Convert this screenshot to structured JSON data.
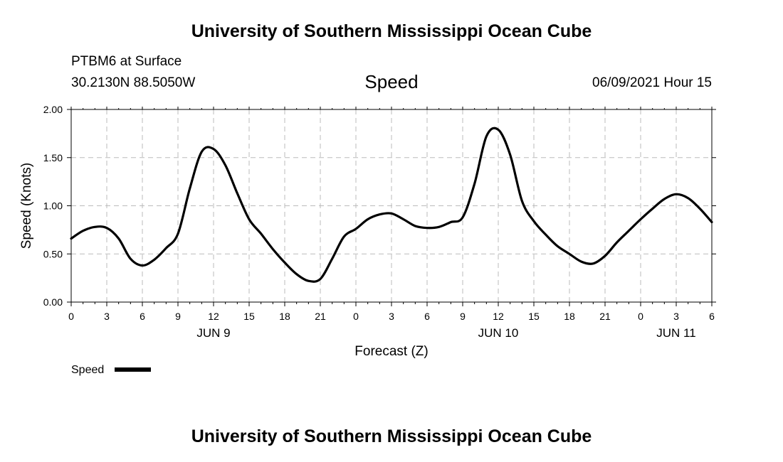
{
  "page": {
    "title_top": "University of Southern Mississippi Ocean Cube",
    "title_bottom": "University of Southern Mississippi Ocean Cube",
    "station": "PTBM6 at Surface",
    "location": "30.2130N  88.5050W",
    "chart_name": "Speed",
    "datetime": "06/09/2021 Hour 15"
  },
  "colors": {
    "line": "#000000",
    "grid": "#bbbbbb",
    "background": "#ffffff"
  },
  "chart_data": {
    "type": "line",
    "title": "Speed",
    "xlabel": "Forecast (Z)",
    "ylabel": "Speed (Knots)",
    "xlim": [
      0,
      54
    ],
    "ylim": [
      0,
      2
    ],
    "y_ticks": [
      0,
      0.5,
      1,
      1.5,
      2
    ],
    "y_tick_labels": [
      "0.00",
      "0.50",
      "1.00",
      "1.50",
      "2.00"
    ],
    "x_ticks": [
      0,
      3,
      6,
      9,
      12,
      15,
      18,
      21,
      24,
      27,
      30,
      33,
      36,
      39,
      42,
      45,
      48,
      51,
      54
    ],
    "x_tick_labels": [
      "0",
      "3",
      "6",
      "9",
      "12",
      "15",
      "18",
      "21",
      "0",
      "3",
      "6",
      "9",
      "12",
      "15",
      "18",
      "21",
      "0",
      "3",
      "6"
    ],
    "day_labels": [
      {
        "x": 12,
        "label": "JUN 9"
      },
      {
        "x": 36,
        "label": "JUN 10"
      },
      {
        "x": 51,
        "label": "JUN 11"
      }
    ],
    "grid": true,
    "legend": {
      "position": "bottom-left",
      "label": "Speed"
    },
    "series": [
      {
        "name": "Speed",
        "x": [
          0,
          1,
          2,
          3,
          4,
          5,
          6,
          7,
          8,
          9,
          10,
          11,
          12,
          13,
          14,
          15,
          16,
          17,
          18,
          19,
          20,
          21,
          22,
          23,
          24,
          25,
          26,
          27,
          28,
          29,
          30,
          31,
          32,
          33,
          34,
          35,
          36,
          37,
          38,
          39,
          40,
          41,
          42,
          43,
          44,
          45,
          46,
          47,
          48,
          49,
          50,
          51,
          52,
          53,
          54
        ],
        "values": [
          0.66,
          0.74,
          0.78,
          0.77,
          0.66,
          0.45,
          0.38,
          0.44,
          0.56,
          0.71,
          1.18,
          1.56,
          1.59,
          1.42,
          1.13,
          0.86,
          0.71,
          0.55,
          0.41,
          0.29,
          0.22,
          0.24,
          0.45,
          0.68,
          0.76,
          0.86,
          0.91,
          0.92,
          0.86,
          0.79,
          0.77,
          0.78,
          0.83,
          0.88,
          1.23,
          1.72,
          1.79,
          1.53,
          1.05,
          0.84,
          0.7,
          0.58,
          0.5,
          0.42,
          0.4,
          0.48,
          0.62,
          0.74,
          0.86,
          0.97,
          1.07,
          1.12,
          1.08,
          0.97,
          0.83
        ]
      }
    ]
  }
}
